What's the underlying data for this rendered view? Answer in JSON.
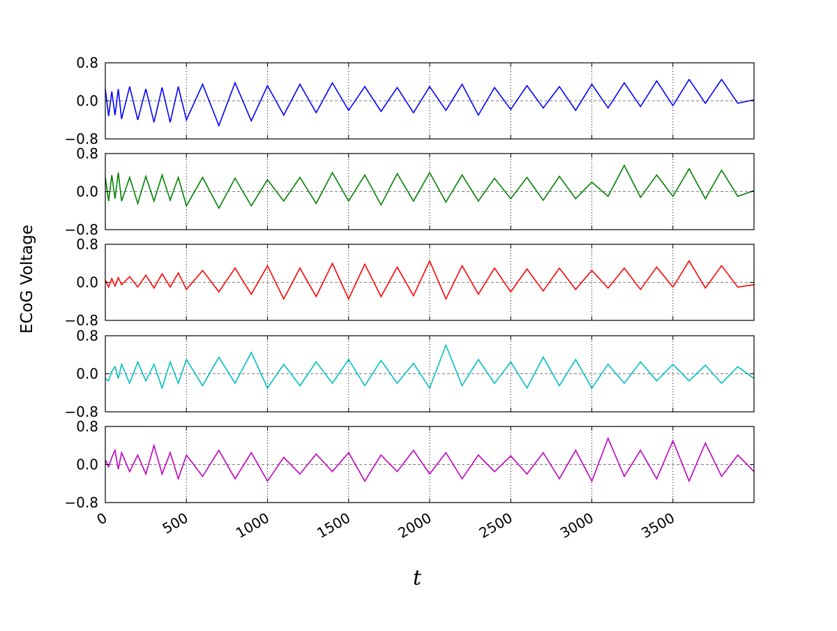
{
  "chart_data": {
    "type": "line",
    "layout": "5 vertically stacked panels sharing the x axis",
    "ylabel": "ECoG Voltage",
    "xlabel": "t",
    "xlim": [
      0,
      4000
    ],
    "x_ticks": [
      0,
      500,
      1000,
      1500,
      2000,
      2500,
      3000,
      3500
    ],
    "x_tick_labels": [
      "0",
      "500",
      "1000",
      "1500",
      "2000",
      "2500",
      "3000",
      "3500"
    ],
    "x_tick_label_rotation_deg": 30,
    "ylim": [
      -0.8,
      0.8
    ],
    "y_ticks": [
      -0.8,
      0.0,
      0.8
    ],
    "y_tick_labels": [
      "−0.8",
      "0.0",
      "0.8"
    ],
    "grid": "vertical dotted lines at each x tick",
    "zero_line": "dashed horizontal line at 0",
    "legend": "none",
    "series": [
      {
        "color": "#0000ff",
        "x": [
          0,
          20,
          40,
          60,
          80,
          100,
          150,
          200,
          250,
          300,
          350,
          400,
          450,
          500,
          600,
          700,
          800,
          900,
          1000,
          1100,
          1200,
          1300,
          1400,
          1500,
          1600,
          1700,
          1800,
          1900,
          2000,
          2100,
          2200,
          2300,
          2400,
          2500,
          2600,
          2700,
          2800,
          2900,
          3000,
          3100,
          3200,
          3300,
          3400,
          3500,
          3600,
          3700,
          3800,
          3900,
          4000
        ],
        "y": [
          0.25,
          -0.32,
          0.2,
          -0.3,
          0.25,
          -0.38,
          0.3,
          -0.4,
          0.25,
          -0.45,
          0.28,
          -0.45,
          0.3,
          -0.4,
          0.35,
          -0.52,
          0.38,
          -0.42,
          0.32,
          -0.3,
          0.35,
          -0.25,
          0.38,
          -0.2,
          0.3,
          -0.22,
          0.28,
          -0.25,
          0.3,
          -0.2,
          0.35,
          -0.3,
          0.28,
          -0.18,
          0.32,
          -0.15,
          0.3,
          -0.2,
          0.35,
          -0.15,
          0.38,
          -0.12,
          0.42,
          -0.1,
          0.45,
          -0.05,
          0.45,
          -0.05,
          0.02
        ]
      },
      {
        "color": "#008000",
        "x": [
          0,
          20,
          40,
          60,
          80,
          100,
          150,
          200,
          250,
          300,
          350,
          400,
          450,
          500,
          600,
          700,
          800,
          900,
          1000,
          1100,
          1200,
          1300,
          1400,
          1500,
          1600,
          1700,
          1800,
          1900,
          2000,
          2100,
          2200,
          2300,
          2400,
          2500,
          2600,
          2700,
          2800,
          2900,
          3000,
          3100,
          3200,
          3300,
          3400,
          3500,
          3600,
          3700,
          3800,
          3900,
          4000
        ],
        "y": [
          0.3,
          -0.2,
          0.35,
          -0.15,
          0.4,
          -0.2,
          0.3,
          -0.25,
          0.32,
          -0.2,
          0.35,
          -0.18,
          0.3,
          -0.3,
          0.3,
          -0.35,
          0.28,
          -0.3,
          0.25,
          -0.2,
          0.3,
          -0.25,
          0.4,
          -0.2,
          0.35,
          -0.28,
          0.38,
          -0.2,
          0.4,
          -0.22,
          0.35,
          -0.2,
          0.28,
          -0.15,
          0.3,
          -0.18,
          0.32,
          -0.15,
          0.2,
          -0.1,
          0.55,
          -0.12,
          0.35,
          -0.1,
          0.48,
          -0.15,
          0.45,
          -0.1,
          0.02
        ]
      },
      {
        "color": "#ff0000",
        "x": [
          0,
          20,
          40,
          60,
          80,
          100,
          150,
          200,
          250,
          300,
          350,
          400,
          450,
          500,
          600,
          700,
          800,
          900,
          1000,
          1100,
          1200,
          1300,
          1400,
          1500,
          1600,
          1700,
          1800,
          1900,
          2000,
          2100,
          2200,
          2300,
          2400,
          2500,
          2600,
          2700,
          2800,
          2900,
          3000,
          3100,
          3200,
          3300,
          3400,
          3500,
          3600,
          3700,
          3800,
          3900,
          4000
        ],
        "y": [
          0.05,
          -0.1,
          0.08,
          -0.08,
          0.1,
          -0.05,
          0.12,
          -0.1,
          0.15,
          -0.12,
          0.18,
          -0.1,
          0.2,
          -0.15,
          0.25,
          -0.2,
          0.3,
          -0.25,
          0.35,
          -0.35,
          0.3,
          -0.3,
          0.4,
          -0.35,
          0.38,
          -0.3,
          0.32,
          -0.28,
          0.45,
          -0.35,
          0.35,
          -0.25,
          0.3,
          -0.2,
          0.28,
          -0.18,
          0.3,
          -0.15,
          0.25,
          -0.12,
          0.3,
          -0.15,
          0.32,
          -0.1,
          0.45,
          -0.12,
          0.35,
          -0.1,
          -0.05
        ]
      },
      {
        "color": "#00bfbf",
        "x": [
          0,
          20,
          40,
          60,
          80,
          100,
          150,
          200,
          250,
          300,
          350,
          400,
          450,
          500,
          600,
          700,
          800,
          900,
          1000,
          1100,
          1200,
          1300,
          1400,
          1500,
          1600,
          1700,
          1800,
          1900,
          2000,
          2100,
          2200,
          2300,
          2400,
          2500,
          2600,
          2700,
          2800,
          2900,
          3000,
          3100,
          3200,
          3300,
          3400,
          3500,
          3600,
          3700,
          3800,
          3900,
          4000
        ],
        "y": [
          -0.1,
          -0.15,
          0.05,
          0.15,
          -0.1,
          0.2,
          -0.2,
          0.25,
          -0.15,
          0.2,
          -0.3,
          0.25,
          -0.2,
          0.3,
          -0.25,
          0.35,
          -0.2,
          0.45,
          -0.3,
          0.2,
          -0.25,
          0.25,
          -0.2,
          0.3,
          -0.25,
          0.28,
          -0.2,
          0.22,
          -0.3,
          0.6,
          -0.25,
          0.3,
          -0.2,
          0.25,
          -0.3,
          0.35,
          -0.25,
          0.3,
          -0.3,
          0.2,
          -0.2,
          0.25,
          -0.15,
          0.2,
          -0.15,
          0.18,
          -0.2,
          0.15,
          -0.1
        ]
      },
      {
        "color": "#bf00bf",
        "x": [
          0,
          20,
          40,
          60,
          80,
          100,
          150,
          200,
          250,
          300,
          350,
          400,
          450,
          500,
          600,
          700,
          800,
          900,
          1000,
          1100,
          1200,
          1300,
          1400,
          1500,
          1600,
          1700,
          1800,
          1900,
          2000,
          2100,
          2200,
          2300,
          2400,
          2500,
          2600,
          2700,
          2800,
          2900,
          3000,
          3100,
          3200,
          3300,
          3400,
          3500,
          3600,
          3700,
          3800,
          3900,
          4000
        ],
        "y": [
          0.1,
          -0.05,
          0.15,
          0.3,
          -0.1,
          0.25,
          -0.15,
          0.2,
          -0.2,
          0.4,
          -0.2,
          0.25,
          -0.3,
          0.2,
          -0.25,
          0.3,
          -0.3,
          0.25,
          -0.35,
          0.15,
          -0.2,
          0.22,
          -0.15,
          0.25,
          -0.35,
          0.2,
          -0.15,
          0.3,
          -0.2,
          0.25,
          -0.3,
          0.2,
          -0.15,
          0.18,
          -0.2,
          0.25,
          -0.3,
          0.3,
          -0.35,
          0.55,
          -0.25,
          0.3,
          -0.3,
          0.5,
          -0.35,
          0.45,
          -0.25,
          0.2,
          -0.15
        ]
      }
    ]
  }
}
